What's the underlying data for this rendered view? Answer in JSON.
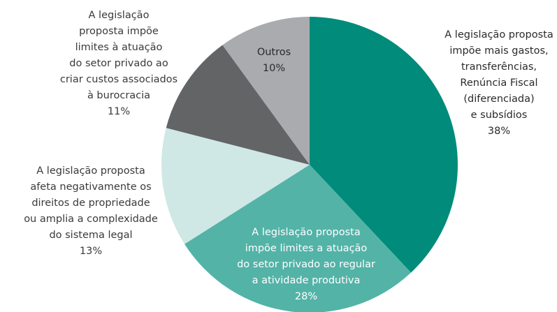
{
  "chart_data": {
    "type": "pie",
    "labels": [
      [
        "A legislação proposta",
        "impõe mais gastos,",
        "transferências,",
        "Renúncia Fiscal",
        "(diferenciada)",
        "e subsídios"
      ],
      [
        "A legislação proposta",
        "impõe limites a atuação",
        "do setor privado ao regular",
        "a atividade produtiva"
      ],
      [
        "A legislação proposta",
        "afeta negativamente os",
        "direitos de propriedade",
        "ou amplia a complexidade",
        "do sistema legal"
      ],
      [
        "A legislação",
        "proposta impõe",
        "limites à atuação",
        "do setor privado ao",
        "criar custos associados",
        "à burocracia"
      ],
      [
        "Outros"
      ]
    ],
    "values": [
      38,
      28,
      13,
      11,
      10
    ],
    "value_labels": [
      "38%",
      "28%",
      "13%",
      "11%",
      "10%"
    ],
    "colors": [
      "#008b7a",
      "#53b3a7",
      "#cfe8e5",
      "#636466",
      "#a9abae"
    ]
  }
}
